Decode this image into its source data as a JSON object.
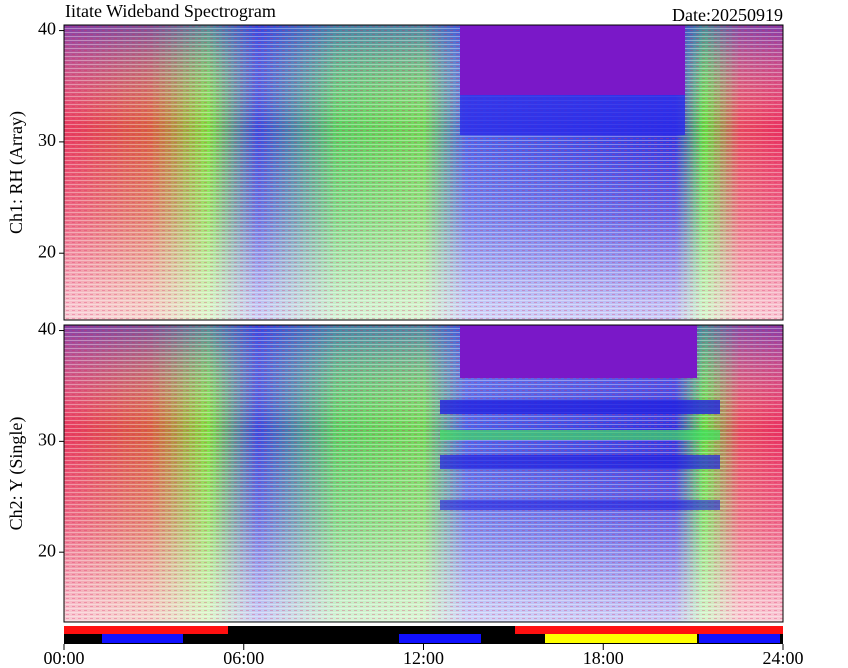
{
  "title": "Iitate Wideband Spectrogram",
  "date": "Date:20250919",
  "chart_data": [
    {
      "type": "spectrogram",
      "ylabel": "Ch1: RH (Array)",
      "ylim": [
        14,
        40.5
      ],
      "yticks": [
        20,
        30,
        40
      ]
    },
    {
      "type": "spectrogram",
      "ylabel": "Ch2: Y (Single)",
      "ylim": [
        13.7,
        40.5
      ],
      "yticks": [
        20,
        30,
        40
      ],
      "xlim": [
        0,
        24
      ],
      "xticks": [
        {
          "value": 0,
          "label": "00:00"
        },
        {
          "value": 6,
          "label": "06:00"
        },
        {
          "value": 12,
          "label": "12:00"
        },
        {
          "value": 18,
          "label": "18:00"
        },
        {
          "value": 24,
          "label": "24:00"
        }
      ]
    }
  ]
}
